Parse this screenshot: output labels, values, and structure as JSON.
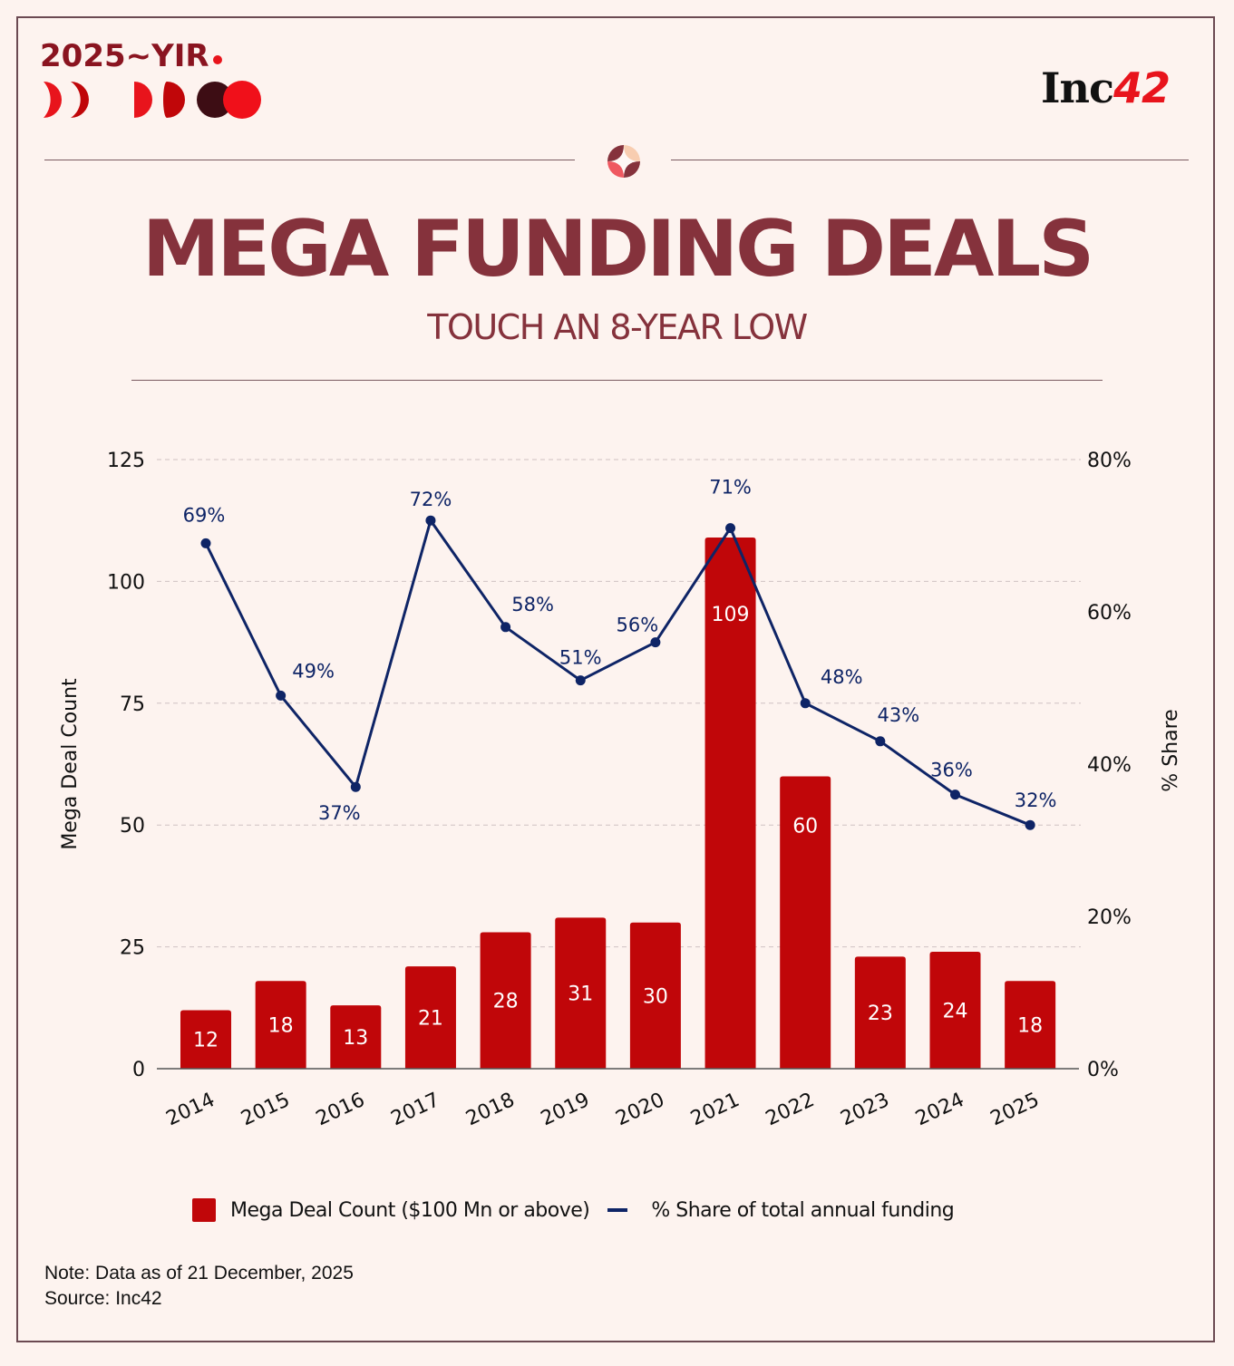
{
  "header": {
    "brand_title": "2025~YIR",
    "logo_text": "Inc",
    "logo_number": "42"
  },
  "colors": {
    "background": "#fdf3ef",
    "title": "#85323c",
    "bar": "#c00609",
    "line": "#0e2466",
    "brand_red": "#e8141c",
    "brand_dark": "#8a1420"
  },
  "icons": {
    "brand_moons": "moon-phases-icon",
    "ornament": "four-petal-star-icon"
  },
  "title": "MEGA FUNDING DEALS",
  "subtitle": "TOUCH AN 8-YEAR LOW",
  "chart_data": {
    "type": "bar",
    "title": "MEGA FUNDING DEALS",
    "subtitle": "TOUCH AN 8-YEAR LOW",
    "categories": [
      "2014",
      "2015",
      "2016",
      "2017",
      "2018",
      "2019",
      "2020",
      "2021",
      "2022",
      "2023",
      "2024",
      "2025"
    ],
    "series": [
      {
        "name": "Mega Deal Count ($100 Mn or above)",
        "type": "bar",
        "axis": "left",
        "values": [
          12,
          18,
          13,
          21,
          28,
          31,
          30,
          109,
          60,
          23,
          24,
          18
        ],
        "labels": [
          "12",
          "18",
          "13",
          "21",
          "28",
          "31",
          "30",
          "109",
          "60",
          "23",
          "24",
          "18"
        ]
      },
      {
        "name": "% Share of total annual funding",
        "type": "line",
        "axis": "right",
        "values": [
          69,
          49,
          37,
          72,
          58,
          51,
          56,
          71,
          48,
          43,
          36,
          32
        ],
        "labels": [
          "69%",
          "49%",
          "37%",
          "72%",
          "58%",
          "51%",
          "56%",
          "71%",
          "48%",
          "43%",
          "36%",
          "32%"
        ]
      }
    ],
    "ylabel": "Mega Deal Count",
    "ylim": [
      0,
      125
    ],
    "yticks": [
      "0",
      "25",
      "50",
      "75",
      "100",
      "125"
    ],
    "ytick_values": [
      0,
      25,
      50,
      75,
      100,
      125
    ],
    "y2label": "% Share",
    "y2lim": [
      0,
      80
    ],
    "y2ticks": [
      "0%",
      "20%",
      "40%",
      "60%",
      "80%"
    ],
    "y2tick_values": [
      0,
      20,
      40,
      60,
      80
    ],
    "xlabel": "",
    "grid": "horizontal dashed",
    "legend_position": "bottom-center",
    "legend": [
      "Mega Deal Count ($100 Mn or above)",
      "% Share of total annual funding"
    ]
  },
  "footer": {
    "note": "Note: Data as of 21 December, 2025",
    "source": "Source: Inc42"
  }
}
